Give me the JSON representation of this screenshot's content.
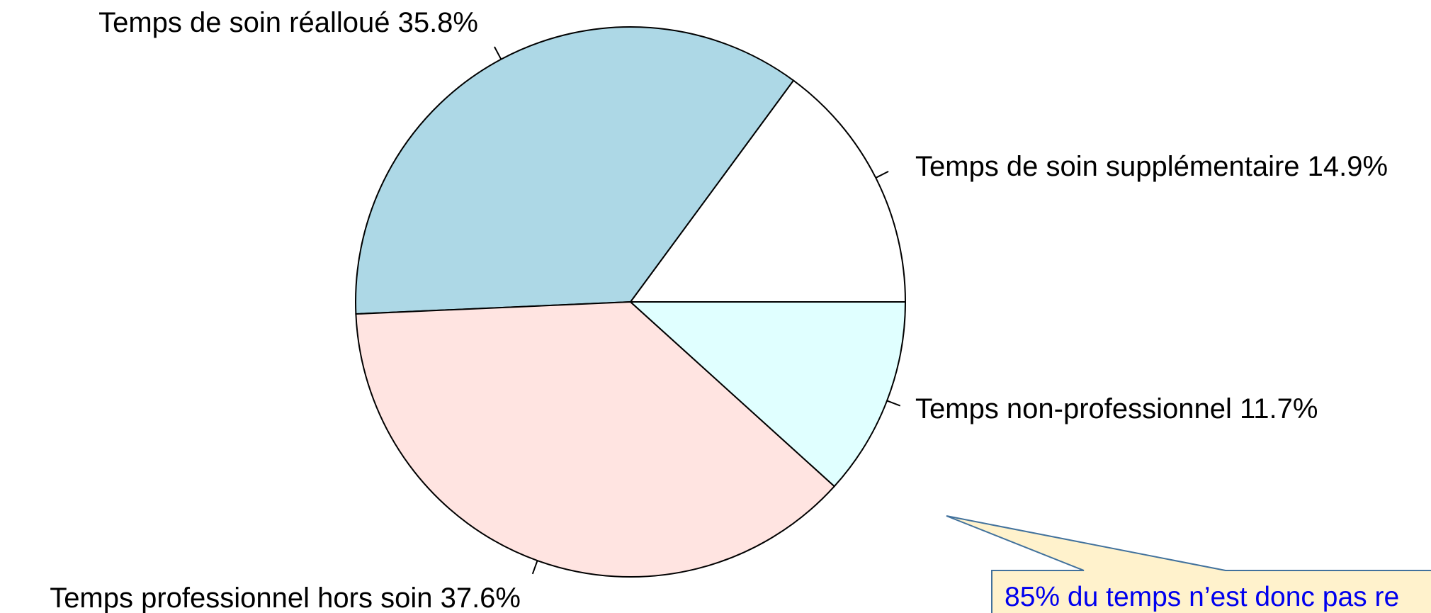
{
  "chart_data": {
    "type": "pie",
    "slices": [
      {
        "label": "Temps de soin supplémentaire 14.9%",
        "value": 14.9,
        "color": "#ffffff"
      },
      {
        "label": "Temps de soin réalloué 35.8%",
        "value": 35.8,
        "color": "#add8e6"
      },
      {
        "label": "Temps professionnel hors soin 37.6%",
        "value": 37.6,
        "color": "#ffe4e1"
      },
      {
        "label": "Temps non-professionnel 11.7%",
        "value": 11.7,
        "color": "#e0ffff"
      }
    ],
    "start_angle_deg": 0,
    "direction": "counterclockwise"
  },
  "callout": {
    "text": "85% du temps n’est donc pas re",
    "text_color": "#0000ee",
    "background": "#fff2cc",
    "border_color": "#41719c"
  }
}
